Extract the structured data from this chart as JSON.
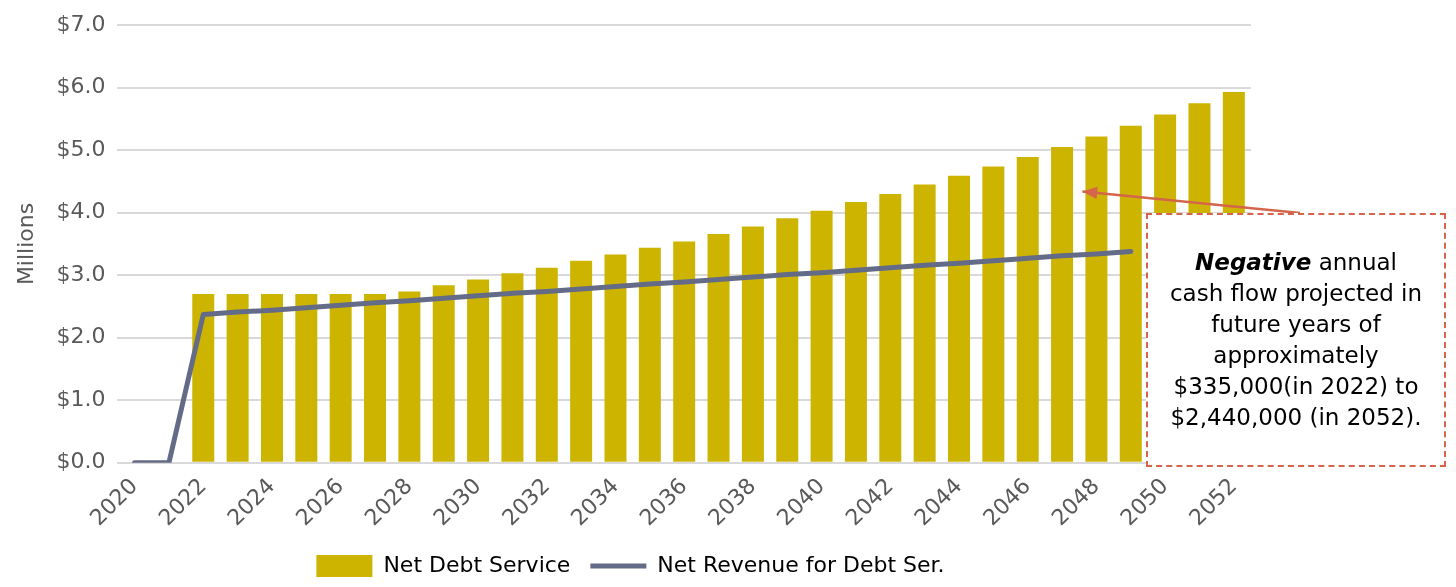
{
  "chart_data": {
    "type": "bar",
    "ylabel": "Millions",
    "categories": [
      "2020",
      null,
      "2022",
      null,
      "2024",
      null,
      "2026",
      null,
      "2028",
      null,
      "2030",
      null,
      "2032",
      null,
      "2034",
      null,
      "2036",
      null,
      "2038",
      null,
      "2040",
      null,
      "2042",
      null,
      "2044",
      null,
      "2046",
      null,
      "2048",
      null,
      "2050",
      null,
      "2052"
    ],
    "series": [
      {
        "name": "Net Debt Service",
        "color": "#cdb400",
        "values": [
          null,
          null,
          2.7,
          2.7,
          2.7,
          2.7,
          2.7,
          2.7,
          2.74,
          2.84,
          2.93,
          3.03,
          3.12,
          3.23,
          3.33,
          3.44,
          3.54,
          3.66,
          3.78,
          3.91,
          4.03,
          4.17,
          4.3,
          4.45,
          4.59,
          4.74,
          4.89,
          5.05,
          5.22,
          5.39,
          5.57,
          5.75,
          5.93
        ]
      },
      {
        "name": "Net Revenue for Debt Ser.",
        "type": "line",
        "color": "#646b86",
        "values": [
          0,
          0,
          2.37,
          2.41,
          2.44,
          2.48,
          2.52,
          2.56,
          2.59,
          2.63,
          2.67,
          2.71,
          2.74,
          2.78,
          2.82,
          2.86,
          2.89,
          2.93,
          2.97,
          3.01,
          3.04,
          3.08,
          3.12,
          3.16,
          3.19,
          3.23,
          3.27,
          3.31,
          3.34,
          3.38,
          null,
          null,
          null
        ]
      }
    ],
    "ylim": [
      0,
      7
    ],
    "yticks": [
      {
        "value": 0,
        "label": "$0.0"
      },
      {
        "value": 1,
        "label": "$1.0"
      },
      {
        "value": 2,
        "label": "$2.0"
      },
      {
        "value": 3,
        "label": "$3.0"
      },
      {
        "value": 4,
        "label": "$4.0"
      },
      {
        "value": 5,
        "label": "$5.0"
      },
      {
        "value": 6,
        "label": "$6.0"
      },
      {
        "value": 7,
        "label": "$7.0"
      }
    ],
    "grid": "y",
    "legend": "bottom",
    "marker": "none",
    "line_style": "solid",
    "annotations": [
      "Negative annual cash flow projected in future years of approximately $335,000(in 2022) to $2,440,000 (in 2052)."
    ]
  }
}
